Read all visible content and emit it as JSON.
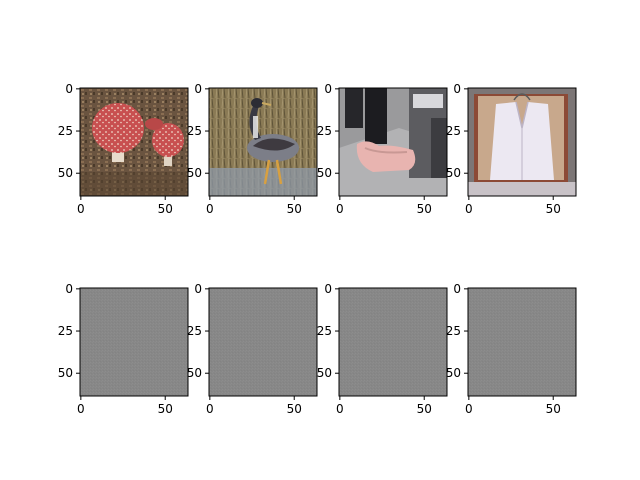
{
  "chart_data": {
    "type": "image-grid",
    "rows": 2,
    "cols": 4,
    "image_size": [
      64,
      64
    ],
    "xticks": [
      "0",
      "50"
    ],
    "yticks": [
      "0",
      "25",
      "50"
    ],
    "xtick_values": [
      0,
      50
    ],
    "ytick_values": [
      0,
      25,
      50
    ],
    "panels": [
      {
        "content": "photo",
        "subject": "red mushrooms (fly agaric) on forest floor"
      },
      {
        "content": "photo",
        "subject": "bustard bird standing in grass"
      },
      {
        "content": "photo",
        "subject": "foot in pink shoe cover on floor"
      },
      {
        "content": "photo",
        "subject": "white waistcoat on hanger"
      },
      {
        "content": "noise",
        "color": "#888888"
      },
      {
        "content": "noise",
        "color": "#888888"
      },
      {
        "content": "noise",
        "color": "#888888"
      },
      {
        "content": "noise",
        "color": "#888888"
      }
    ]
  }
}
